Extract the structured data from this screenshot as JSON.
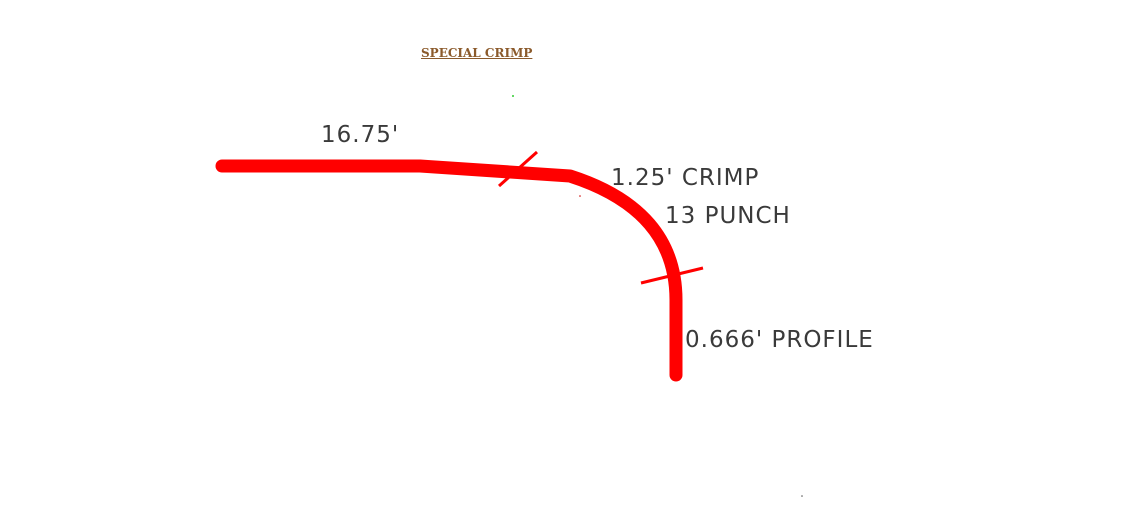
{
  "diagram": {
    "title": "SPECIAL CRIMP",
    "labels": {
      "length": "16.75'",
      "crimp": "1.25' CRIMP",
      "punch": "13 PUNCH",
      "profile": "0.666' PROFILE"
    },
    "colors": {
      "pipe": "#FF0000",
      "title": "#8B5A2B",
      "text": "#3a3a3a"
    }
  }
}
